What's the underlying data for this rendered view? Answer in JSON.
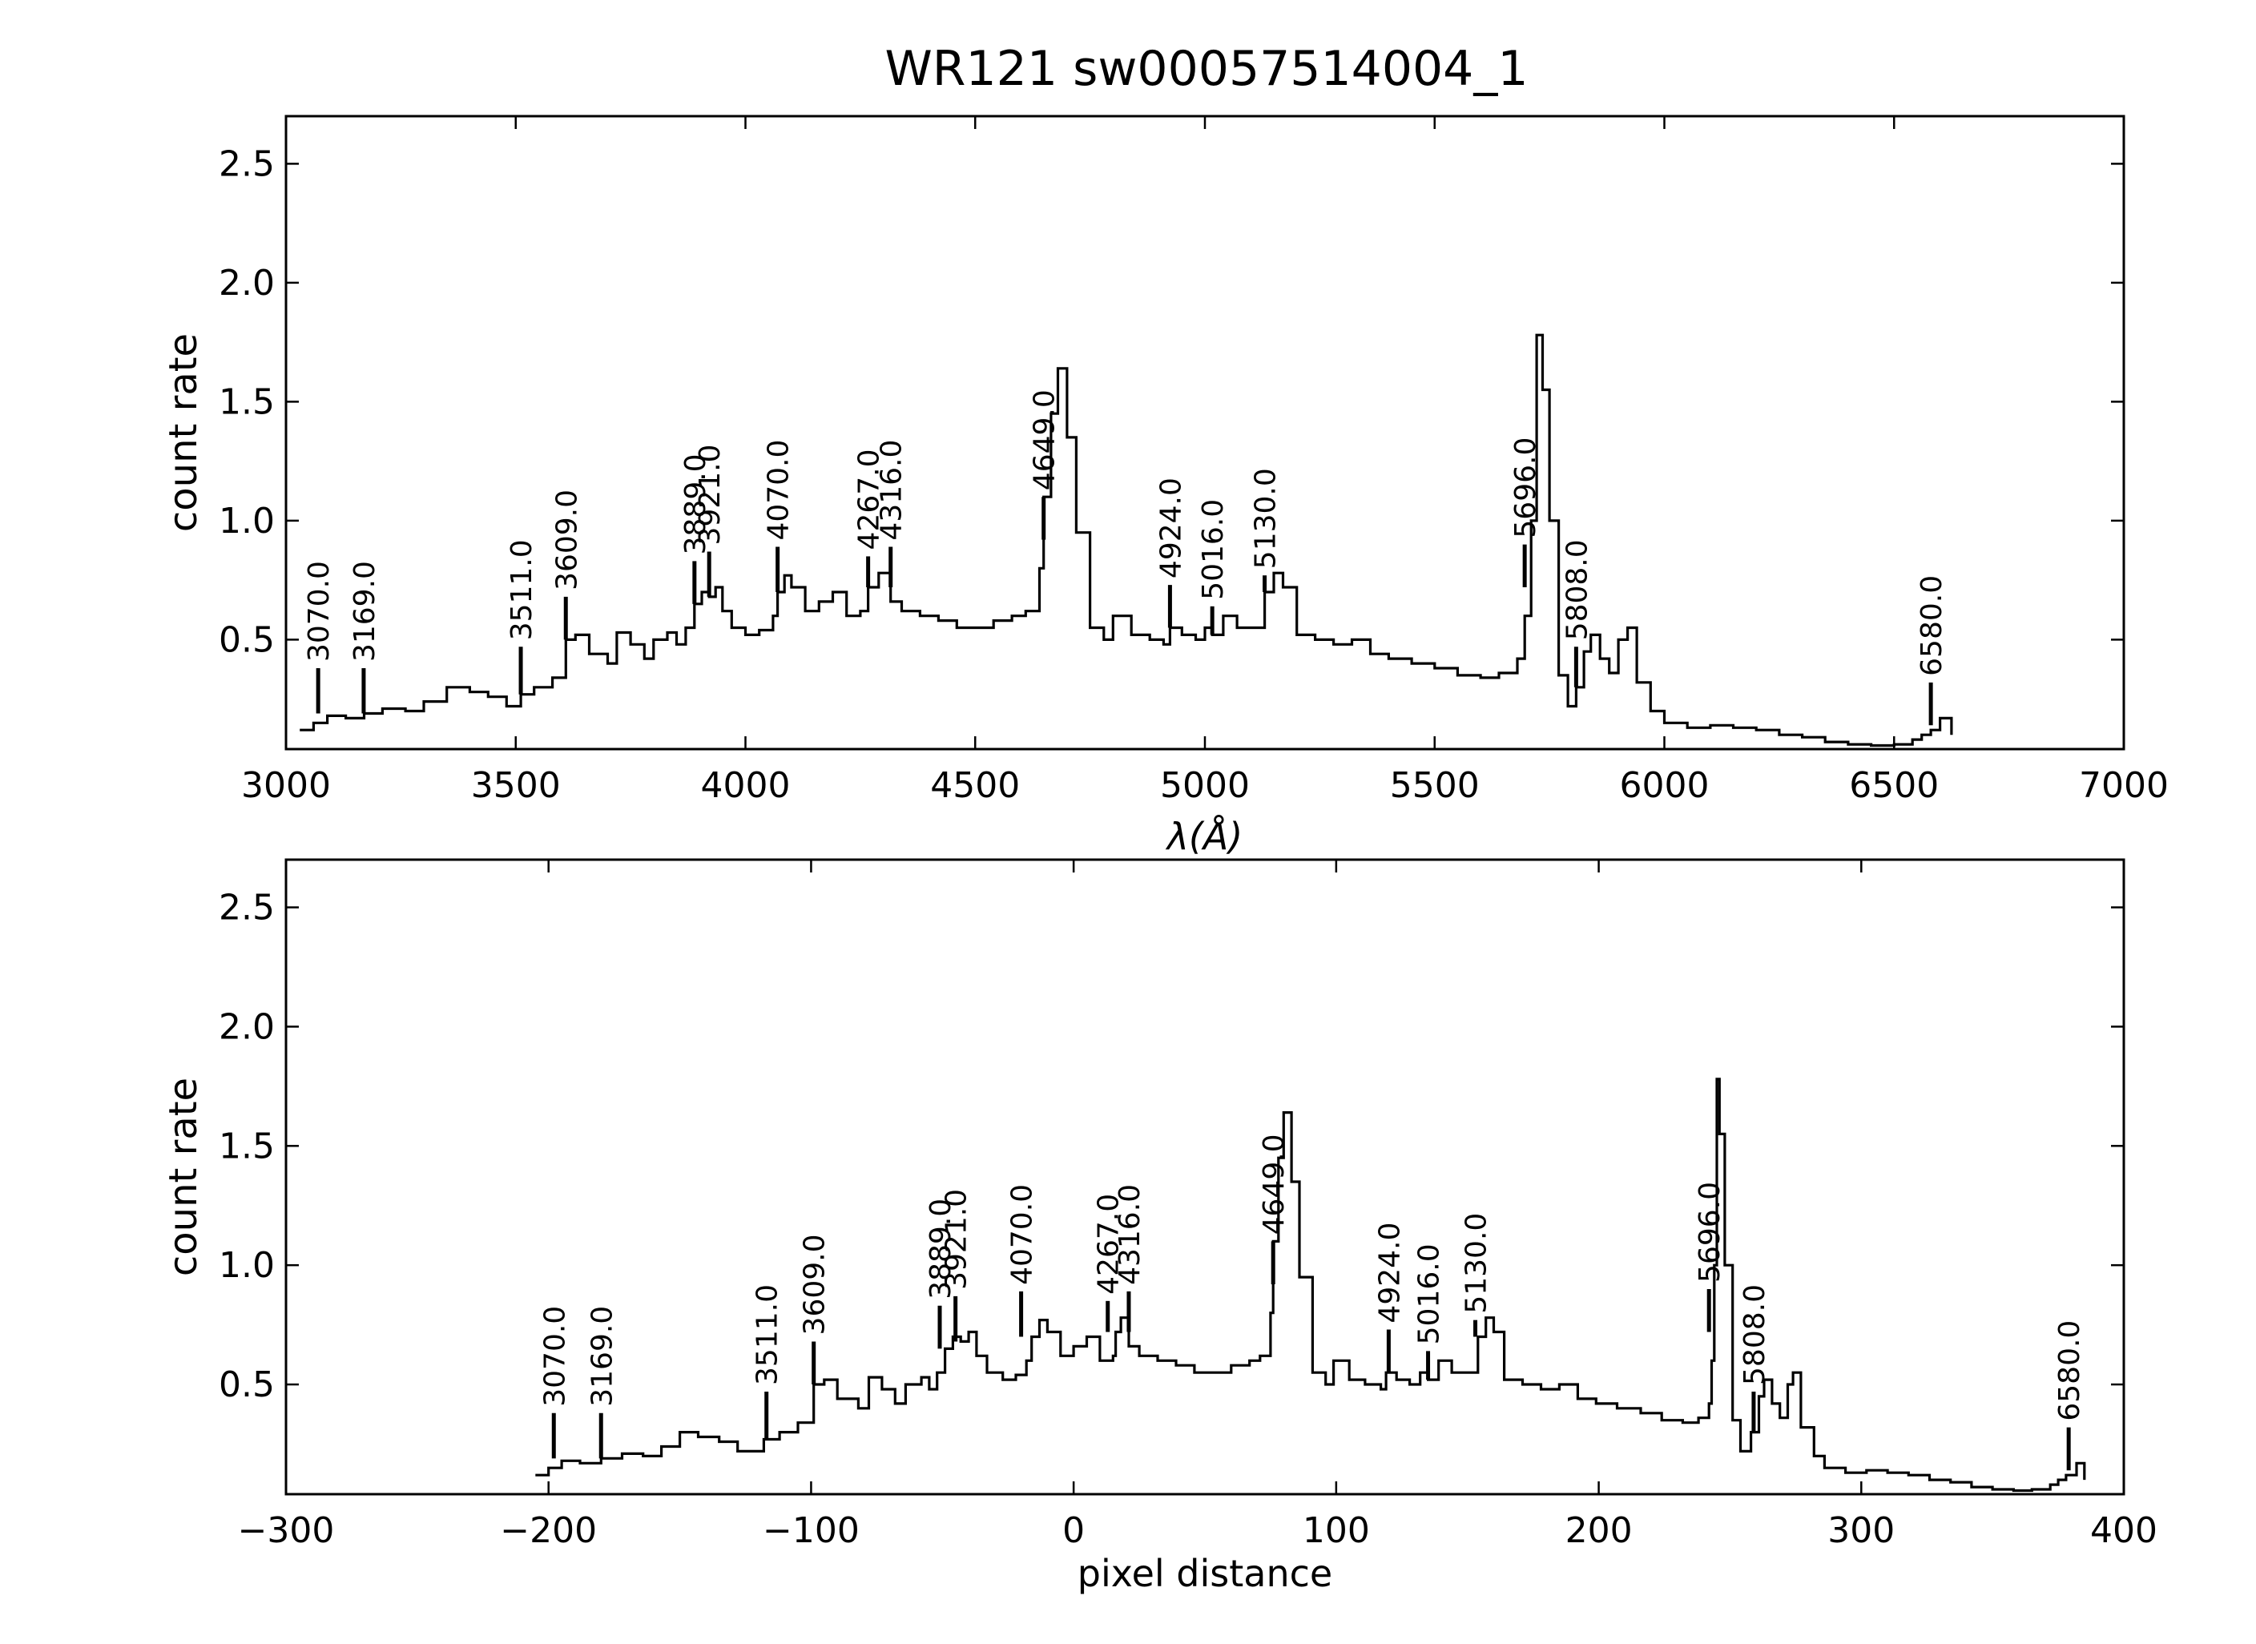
{
  "figure": {
    "title": "WR121  sw00057514004_1"
  },
  "chart_data": [
    {
      "type": "line",
      "title": "WR121  sw00057514004_1",
      "xlabel": "λ(Å)",
      "ylabel": "count rate",
      "xlim": [
        3000,
        7000
      ],
      "ylim": [
        0.04,
        2.7
      ],
      "xticks": [
        3000,
        3500,
        4000,
        4500,
        5000,
        5500,
        6000,
        6500,
        7000
      ],
      "yticks": [
        0.5,
        1.0,
        1.5,
        2.0,
        2.5
      ],
      "xtick_labels": [
        "3000",
        "3500",
        "4000",
        "4500",
        "5000",
        "5500",
        "6000",
        "6500",
        "7000"
      ],
      "ytick_labels": [
        "0.5",
        "1.0",
        "1.5",
        "2.0",
        "2.5"
      ],
      "grid": false,
      "line_color": "#000000",
      "spectrum": {
        "x": [
          3030,
          3060,
          3090,
          3130,
          3170,
          3210,
          3260,
          3300,
          3350,
          3400,
          3440,
          3480,
          3511,
          3540,
          3580,
          3609,
          3630,
          3660,
          3700,
          3720,
          3750,
          3780,
          3800,
          3830,
          3850,
          3870,
          3889,
          3905,
          3921,
          3935,
          3950,
          3970,
          4000,
          4030,
          4060,
          4070,
          4085,
          4100,
          4130,
          4160,
          4190,
          4220,
          4250,
          4267,
          4290,
          4316,
          4340,
          4380,
          4420,
          4460,
          4500,
          4540,
          4580,
          4610,
          4640,
          4649,
          4665,
          4680,
          4700,
          4720,
          4750,
          4780,
          4800,
          4840,
          4880,
          4910,
          4924,
          4950,
          4980,
          5000,
          5016,
          5040,
          5070,
          5100,
          5130,
          5150,
          5170,
          5200,
          5240,
          5280,
          5320,
          5360,
          5400,
          5450,
          5500,
          5550,
          5600,
          5640,
          5680,
          5696,
          5710,
          5722,
          5735,
          5750,
          5770,
          5790,
          5808,
          5825,
          5840,
          5860,
          5880,
          5900,
          5920,
          5940,
          5970,
          6000,
          6050,
          6100,
          6150,
          6200,
          6250,
          6300,
          6350,
          6400,
          6450,
          6500,
          6540,
          6560,
          6580,
          6600,
          6625
        ],
        "y": [
          0.12,
          0.15,
          0.18,
          0.17,
          0.19,
          0.21,
          0.2,
          0.24,
          0.3,
          0.28,
          0.26,
          0.22,
          0.27,
          0.3,
          0.34,
          0.5,
          0.52,
          0.44,
          0.4,
          0.53,
          0.48,
          0.42,
          0.5,
          0.53,
          0.48,
          0.55,
          0.65,
          0.7,
          0.68,
          0.72,
          0.62,
          0.55,
          0.52,
          0.54,
          0.6,
          0.7,
          0.77,
          0.72,
          0.62,
          0.66,
          0.7,
          0.6,
          0.62,
          0.72,
          0.78,
          0.66,
          0.62,
          0.6,
          0.58,
          0.55,
          0.55,
          0.58,
          0.6,
          0.62,
          0.8,
          1.1,
          1.45,
          1.64,
          1.35,
          0.95,
          0.55,
          0.5,
          0.6,
          0.52,
          0.5,
          0.48,
          0.55,
          0.52,
          0.5,
          0.55,
          0.52,
          0.6,
          0.55,
          0.55,
          0.7,
          0.78,
          0.72,
          0.52,
          0.5,
          0.48,
          0.5,
          0.44,
          0.42,
          0.4,
          0.38,
          0.35,
          0.34,
          0.36,
          0.42,
          0.6,
          1.0,
          1.78,
          1.55,
          1.0,
          0.35,
          0.22,
          0.3,
          0.45,
          0.52,
          0.42,
          0.36,
          0.5,
          0.55,
          0.32,
          0.2,
          0.15,
          0.13,
          0.14,
          0.13,
          0.12,
          0.1,
          0.09,
          0.07,
          0.06,
          0.055,
          0.06,
          0.08,
          0.1,
          0.12,
          0.17,
          0.1
        ]
      },
      "line_markers": [
        {
          "label": "3070.0",
          "x": 3070,
          "y0": 0.19,
          "y1": 0.38
        },
        {
          "label": "3169.0",
          "x": 3169,
          "y0": 0.19,
          "y1": 0.38
        },
        {
          "label": "3511.0",
          "x": 3511,
          "y0": 0.27,
          "y1": 0.47
        },
        {
          "label": "3609.0",
          "x": 3609,
          "y0": 0.5,
          "y1": 0.68
        },
        {
          "label": "3889.0",
          "x": 3889,
          "y0": 0.65,
          "y1": 0.83
        },
        {
          "label": "3921.0",
          "x": 3921,
          "y0": 0.68,
          "y1": 0.87
        },
        {
          "label": "4070.0",
          "x": 4070,
          "y0": 0.7,
          "y1": 0.89
        },
        {
          "label": "4267.0",
          "x": 4267,
          "y0": 0.72,
          "y1": 0.85
        },
        {
          "label": "4316.0",
          "x": 4316,
          "y0": 0.72,
          "y1": 0.89
        },
        {
          "label": "4649.0",
          "x": 4649,
          "y0": 0.92,
          "y1": 1.1
        },
        {
          "label": "4924.0",
          "x": 4924,
          "y0": 0.55,
          "y1": 0.73
        },
        {
          "label": "5016.0",
          "x": 5016,
          "y0": 0.52,
          "y1": 0.64
        },
        {
          "label": "5130.0",
          "x": 5130,
          "y0": 0.7,
          "y1": 0.77
        },
        {
          "label": "5696.0",
          "x": 5696,
          "y0": 0.72,
          "y1": 0.9
        },
        {
          "label": "5808.0",
          "x": 5808,
          "y0": 0.3,
          "y1": 0.47
        },
        {
          "label": "6580.0",
          "x": 6580,
          "y0": 0.14,
          "y1": 0.32
        }
      ]
    },
    {
      "type": "line",
      "title": "",
      "xlabel": "pixel distance",
      "ylabel": "count rate",
      "xlim": [
        -300,
        400
      ],
      "ylim": [
        0.04,
        2.7
      ],
      "xticks": [
        -300,
        -200,
        -100,
        0,
        100,
        200,
        300,
        400
      ],
      "yticks": [
        0.5,
        1.0,
        1.5,
        2.0,
        2.5
      ],
      "xtick_labels": [
        "−300",
        "−200",
        "−100",
        "0",
        "100",
        "200",
        "300",
        "400"
      ],
      "ytick_labels": [
        "0.5",
        "1.0",
        "1.5",
        "2.0",
        "2.5"
      ],
      "grid": false,
      "line_color": "#000000",
      "spectrum": {
        "x": [
          -205,
          -200,
          -195,
          -188,
          -180,
          -172,
          -164,
          -157,
          -150,
          -143,
          -135,
          -128,
          -118,
          -112,
          -105,
          -99,
          -95,
          -90,
          -82,
          -78,
          -73,
          -68,
          -64,
          -58,
          -55,
          -52,
          -49,
          -46,
          -43,
          -40,
          -37,
          -33,
          -27,
          -22,
          -18,
          -16,
          -13,
          -10,
          -5,
          0,
          5,
          10,
          15,
          16,
          18,
          21,
          25,
          32,
          39,
          46,
          53,
          60,
          67,
          71,
          75,
          76,
          78,
          80,
          83,
          86,
          91,
          96,
          99,
          105,
          111,
          117,
          119,
          123,
          128,
          132,
          135,
          139,
          144,
          149,
          154,
          157,
          160,
          164,
          171,
          178,
          185,
          192,
          199,
          207,
          216,
          224,
          232,
          238,
          242,
          243,
          244,
          245,
          246,
          248,
          251,
          254,
          258,
          261,
          263,
          266,
          269,
          272,
          274,
          277,
          282,
          286,
          294,
          302,
          310,
          318,
          326,
          334,
          342,
          350,
          358,
          365,
          372,
          375,
          378,
          382,
          385
        ],
        "y": [
          0.12,
          0.15,
          0.18,
          0.17,
          0.19,
          0.21,
          0.2,
          0.24,
          0.3,
          0.28,
          0.26,
          0.22,
          0.27,
          0.3,
          0.34,
          0.5,
          0.52,
          0.44,
          0.4,
          0.53,
          0.48,
          0.42,
          0.5,
          0.53,
          0.48,
          0.55,
          0.65,
          0.7,
          0.68,
          0.72,
          0.62,
          0.55,
          0.52,
          0.54,
          0.6,
          0.7,
          0.77,
          0.72,
          0.62,
          0.66,
          0.7,
          0.6,
          0.62,
          0.72,
          0.78,
          0.66,
          0.62,
          0.6,
          0.58,
          0.55,
          0.55,
          0.58,
          0.6,
          0.62,
          0.8,
          1.1,
          1.45,
          1.64,
          1.35,
          0.95,
          0.55,
          0.5,
          0.6,
          0.52,
          0.5,
          0.48,
          0.55,
          0.52,
          0.5,
          0.55,
          0.52,
          0.6,
          0.55,
          0.55,
          0.7,
          0.78,
          0.72,
          0.52,
          0.5,
          0.48,
          0.5,
          0.44,
          0.42,
          0.4,
          0.38,
          0.35,
          0.34,
          0.36,
          0.42,
          0.6,
          1.0,
          1.78,
          1.55,
          1.0,
          0.35,
          0.22,
          0.3,
          0.45,
          0.52,
          0.42,
          0.36,
          0.5,
          0.55,
          0.32,
          0.2,
          0.15,
          0.13,
          0.14,
          0.13,
          0.12,
          0.1,
          0.09,
          0.07,
          0.06,
          0.055,
          0.06,
          0.08,
          0.1,
          0.12,
          0.17,
          0.1
        ]
      },
      "line_markers": [
        {
          "label": "3070.0",
          "x": -198,
          "y0": 0.19,
          "y1": 0.38
        },
        {
          "label": "3169.0",
          "x": -180,
          "y0": 0.19,
          "y1": 0.38
        },
        {
          "label": "3511.0",
          "x": -117,
          "y0": 0.27,
          "y1": 0.47
        },
        {
          "label": "3609.0",
          "x": -99,
          "y0": 0.5,
          "y1": 0.68
        },
        {
          "label": "3889.0",
          "x": -51,
          "y0": 0.65,
          "y1": 0.83
        },
        {
          "label": "3921.0",
          "x": -45,
          "y0": 0.68,
          "y1": 0.87
        },
        {
          "label": "4070.0",
          "x": -20,
          "y0": 0.7,
          "y1": 0.89
        },
        {
          "label": "4267.0",
          "x": 13,
          "y0": 0.72,
          "y1": 0.85
        },
        {
          "label": "4316.0",
          "x": 21,
          "y0": 0.72,
          "y1": 0.89
        },
        {
          "label": "4649.0",
          "x": 76,
          "y0": 0.92,
          "y1": 1.1
        },
        {
          "label": "4924.0",
          "x": 120,
          "y0": 0.55,
          "y1": 0.73
        },
        {
          "label": "5016.0",
          "x": 135,
          "y0": 0.52,
          "y1": 0.64
        },
        {
          "label": "5130.0",
          "x": 153,
          "y0": 0.7,
          "y1": 0.77
        },
        {
          "label": "5696.0",
          "x": 242,
          "y0": 0.72,
          "y1": 0.9
        },
        {
          "label": "5808.0",
          "x": 259,
          "y0": 0.3,
          "y1": 0.47
        },
        {
          "label": "6580.0",
          "x": 379,
          "y0": 0.14,
          "y1": 0.32
        }
      ]
    }
  ]
}
